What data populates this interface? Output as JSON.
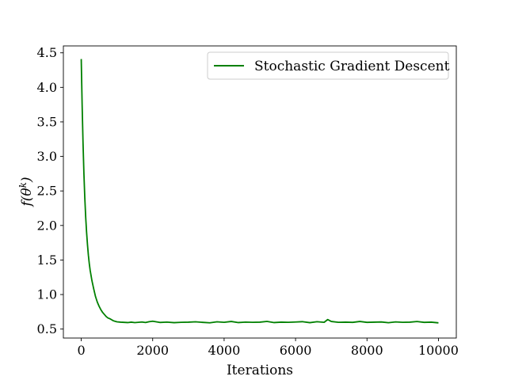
{
  "chart_data": {
    "type": "line",
    "xlabel": "Iterations",
    "ylabel_prefix": "f(θ",
    "ylabel_sup": "k",
    "ylabel_suffix": ")",
    "xlim": [
      -500,
      10500
    ],
    "ylim": [
      0.37,
      4.6
    ],
    "x_ticks": [
      0,
      2000,
      4000,
      6000,
      8000,
      10000
    ],
    "y_ticks": [
      0.5,
      1.0,
      1.5,
      2.0,
      2.5,
      3.0,
      3.5,
      4.0,
      4.5
    ],
    "x_tick_labels": [
      "0",
      "2000",
      "4000",
      "6000",
      "8000",
      "10000"
    ],
    "y_tick_labels": [
      "0.5",
      "1.0",
      "1.5",
      "2.0",
      "2.5",
      "3.0",
      "3.5",
      "4.0",
      "4.5"
    ],
    "grid": false,
    "legend_position": "top-right",
    "series": [
      {
        "name": "Stochastic Gradient Descent",
        "color": "#008000",
        "x": [
          0,
          25,
          50,
          75,
          100,
          125,
          150,
          175,
          200,
          225,
          250,
          300,
          350,
          400,
          450,
          500,
          550,
          600,
          650,
          700,
          750,
          800,
          850,
          900,
          950,
          1000,
          1100,
          1200,
          1300,
          1400,
          1500,
          1600,
          1700,
          1800,
          1900,
          2000,
          2200,
          2400,
          2600,
          2800,
          3000,
          3200,
          3400,
          3600,
          3800,
          4000,
          4200,
          4400,
          4600,
          4800,
          5000,
          5200,
          5400,
          5600,
          5800,
          6000,
          6200,
          6400,
          6600,
          6800,
          6900,
          7000,
          7200,
          7400,
          7600,
          7800,
          8000,
          8200,
          8400,
          8600,
          8800,
          9000,
          9200,
          9400,
          9600,
          9800,
          10000
        ],
        "y": [
          4.41,
          3.75,
          3.2,
          2.75,
          2.4,
          2.12,
          1.9,
          1.72,
          1.57,
          1.45,
          1.35,
          1.2,
          1.08,
          0.97,
          0.89,
          0.83,
          0.78,
          0.74,
          0.71,
          0.68,
          0.66,
          0.65,
          0.635,
          0.62,
          0.612,
          0.605,
          0.6,
          0.597,
          0.594,
          0.6,
          0.594,
          0.598,
          0.602,
          0.595,
          0.607,
          0.614,
          0.596,
          0.601,
          0.593,
          0.598,
          0.6,
          0.605,
          0.597,
          0.591,
          0.605,
          0.598,
          0.61,
          0.594,
          0.601,
          0.598,
          0.6,
          0.611,
          0.594,
          0.6,
          0.598,
          0.602,
          0.607,
          0.593,
          0.606,
          0.598,
          0.638,
          0.61,
          0.598,
          0.6,
          0.597,
          0.61,
          0.597,
          0.6,
          0.603,
          0.592,
          0.604,
          0.598,
          0.6,
          0.609,
          0.597,
          0.6,
          0.59
        ]
      }
    ]
  }
}
